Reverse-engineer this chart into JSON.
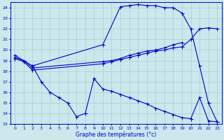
{
  "title": "Graphe des températures (°c)",
  "bg_color": "#cce8ec",
  "grid_color": "#aacdd4",
  "line_color": "#0000cc",
  "xlim": [
    -0.5,
    23.5
  ],
  "ylim": [
    13,
    24.5
  ],
  "yticks": [
    13,
    14,
    15,
    16,
    17,
    18,
    19,
    20,
    21,
    22,
    23,
    24
  ],
  "xticks": [
    0,
    1,
    2,
    3,
    4,
    5,
    6,
    7,
    8,
    9,
    10,
    11,
    12,
    13,
    14,
    15,
    16,
    17,
    18,
    19,
    20,
    21,
    22,
    23
  ],
  "line1_x": [
    0,
    1,
    2,
    10,
    12,
    13,
    14,
    15,
    16,
    17,
    18,
    19,
    20,
    21,
    22,
    23
  ],
  "line1_y": [
    19.5,
    19.0,
    18.5,
    20.5,
    24.1,
    24.2,
    24.3,
    24.2,
    24.2,
    24.0,
    24.0,
    23.5,
    22.0,
    18.5,
    15.0,
    13.2
  ],
  "line2_x": [
    0,
    1,
    2,
    10,
    11,
    12,
    13,
    14,
    15,
    16,
    17,
    18,
    19
  ],
  "line2_y": [
    19.3,
    19.0,
    18.3,
    18.9,
    19.0,
    19.2,
    19.5,
    19.7,
    19.9,
    20.0,
    20.2,
    20.5,
    20.7
  ],
  "line3_x": [
    0,
    1,
    2,
    10,
    11,
    12,
    13,
    14,
    15,
    16,
    17,
    18,
    19,
    20,
    21,
    22,
    23
  ],
  "line3_y": [
    19.2,
    18.9,
    18.1,
    18.7,
    18.9,
    19.1,
    19.3,
    19.5,
    19.7,
    19.9,
    20.0,
    20.2,
    20.3,
    21.0,
    22.0,
    22.1,
    22.0
  ],
  "line4_x": [
    2,
    3,
    4,
    5,
    6,
    7,
    8,
    9,
    10,
    11,
    12,
    13,
    14,
    15,
    16,
    17,
    18,
    19,
    20,
    21,
    22,
    23
  ],
  "line4_y": [
    18.5,
    17.0,
    16.0,
    15.5,
    15.0,
    13.7,
    14.0,
    17.3,
    16.3,
    16.1,
    15.8,
    15.5,
    15.2,
    14.9,
    14.5,
    14.2,
    13.9,
    13.6,
    13.5,
    15.5,
    13.3,
    13.2
  ]
}
